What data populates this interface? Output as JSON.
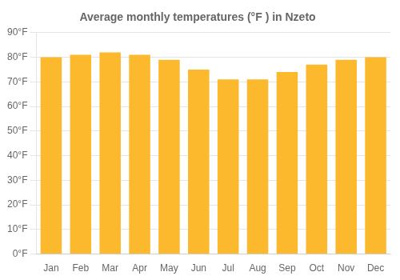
{
  "chart_data": {
    "type": "bar",
    "title": "Average monthly temperatures (°F ) in Nzeto",
    "categories": [
      "Jan",
      "Feb",
      "Mar",
      "Apr",
      "May",
      "Jun",
      "Jul",
      "Aug",
      "Sep",
      "Oct",
      "Nov",
      "Dec"
    ],
    "values": [
      80,
      81,
      82,
      81,
      79,
      75,
      71,
      71,
      74,
      77,
      79,
      80
    ],
    "color": "#FDB92E",
    "ylim": [
      0,
      90
    ],
    "yticks": [
      {
        "value": 0,
        "label": "0°F"
      },
      {
        "value": 10,
        "label": "10°F"
      },
      {
        "value": 20,
        "label": "20°F"
      },
      {
        "value": 30,
        "label": "30°F"
      },
      {
        "value": 40,
        "label": "40°F"
      },
      {
        "value": 50,
        "label": "50°F"
      },
      {
        "value": 60,
        "label": "60°F"
      },
      {
        "value": 70,
        "label": "70°F"
      },
      {
        "value": 80,
        "label": "80°F"
      },
      {
        "value": 90,
        "label": "90°F"
      }
    ],
    "grid": true
  }
}
